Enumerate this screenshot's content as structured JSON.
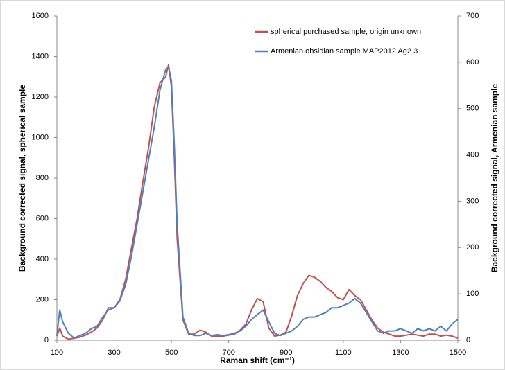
{
  "chart_data": {
    "type": "line",
    "xlabel": "Raman shift (cm⁻¹)",
    "ylabel": "Background corrected signal, spherical sample",
    "y2label": "Background corrected signal, Armenian sample",
    "x": [
      100,
      110,
      120,
      140,
      160,
      180,
      200,
      220,
      240,
      260,
      280,
      300,
      320,
      340,
      360,
      380,
      400,
      420,
      440,
      460,
      480,
      490,
      500,
      510,
      520,
      540,
      560,
      580,
      600,
      620,
      640,
      660,
      680,
      700,
      720,
      740,
      760,
      780,
      800,
      820,
      840,
      860,
      880,
      900,
      920,
      940,
      960,
      980,
      1000,
      1020,
      1040,
      1060,
      1080,
      1100,
      1120,
      1140,
      1160,
      1180,
      1200,
      1220,
      1240,
      1260,
      1280,
      1300,
      1320,
      1340,
      1360,
      1380,
      1400,
      1420,
      1440,
      1460,
      1480,
      1500
    ],
    "xlim": [
      100,
      1500
    ],
    "xticks": [
      100,
      300,
      500,
      700,
      900,
      1100,
      1300,
      1500
    ],
    "ylim": [
      0,
      1600
    ],
    "yticks": [
      0,
      200,
      400,
      600,
      800,
      1000,
      1200,
      1400,
      1600
    ],
    "y2lim": [
      0,
      700
    ],
    "y2ticks": [
      0,
      100,
      200,
      300,
      400,
      500,
      600,
      700
    ],
    "grid": false,
    "legend": "upper right",
    "series": [
      {
        "name": "spherical purchased sample, origin unknown",
        "color": "#c0504d",
        "values": [
          20,
          60,
          20,
          5,
          10,
          15,
          25,
          40,
          60,
          100,
          160,
          160,
          200,
          300,
          450,
          600,
          780,
          950,
          1150,
          1270,
          1300,
          1360,
          1250,
          900,
          500,
          100,
          30,
          30,
          50,
          40,
          20,
          20,
          20,
          25,
          30,
          50,
          80,
          150,
          205,
          190,
          60,
          20,
          25,
          40,
          120,
          220,
          280,
          320,
          310,
          290,
          260,
          240,
          210,
          200,
          250,
          220,
          200,
          150,
          100,
          60,
          40,
          30,
          20,
          20,
          25,
          30,
          25,
          20,
          30,
          30,
          20,
          25,
          20,
          10
        ]
      },
      {
        "name": "Armenian obsidian sample MAP2012 Ag2 3",
        "color": "#4f81bd",
        "axis": "y2",
        "values": [
          10,
          65,
          40,
          15,
          5,
          10,
          15,
          25,
          30,
          50,
          65,
          70,
          85,
          120,
          180,
          250,
          320,
          390,
          460,
          540,
          585,
          590,
          560,
          420,
          250,
          50,
          15,
          10,
          10,
          15,
          10,
          12,
          10,
          12,
          15,
          20,
          30,
          45,
          55,
          65,
          40,
          15,
          10,
          15,
          20,
          30,
          45,
          50,
          50,
          55,
          60,
          70,
          70,
          75,
          80,
          90,
          80,
          60,
          40,
          20,
          15,
          20,
          20,
          25,
          20,
          15,
          25,
          20,
          25,
          20,
          30,
          20,
          35,
          45
        ]
      }
    ]
  }
}
